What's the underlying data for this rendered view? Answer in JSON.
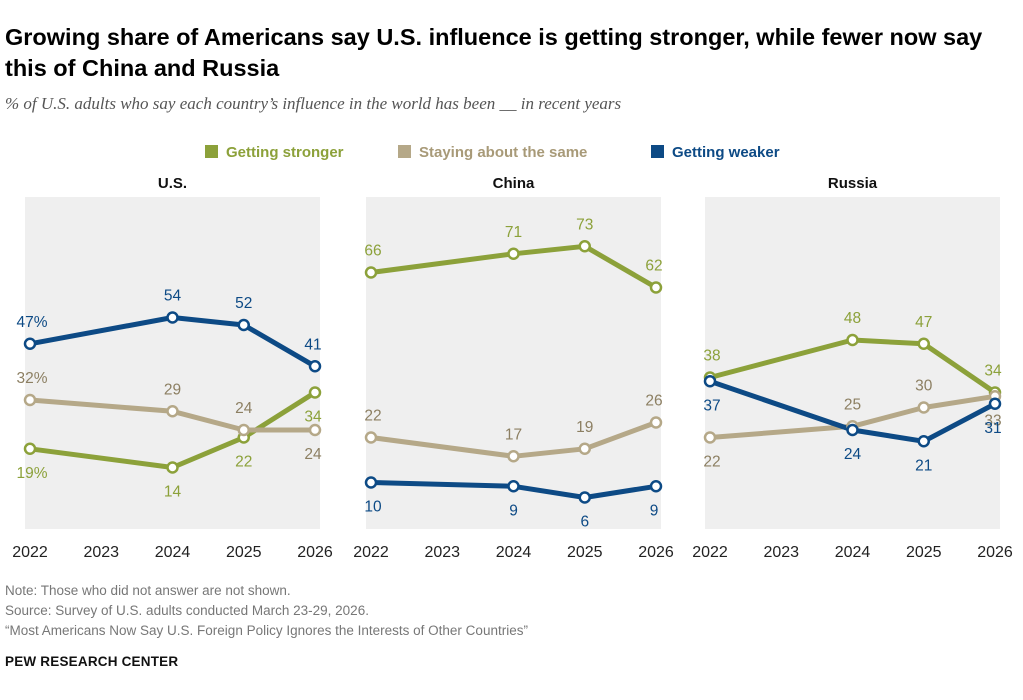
{
  "title": "Growing share of Americans say U.S. influence is getting stronger, while fewer now say this of China and Russia",
  "subtitle": "% of U.S. adults who say each country’s influence in the world has been __ in recent years",
  "notes": [
    "Note: Those who did not answer are not shown.",
    "Source: Survey of U.S. adults conducted March 23-29, 2026.",
    "“Most Americans Now Say U.S. Foreign Policy Ignores the Interests of Other Countries”"
  ],
  "organization": "PEW RESEARCH CENTER",
  "colors": {
    "stronger": "#8ca13a",
    "same": "#b5a888",
    "weaker": "#0d4a85",
    "panel_bg": "#efefef"
  },
  "chart_data": {
    "type": "line",
    "legend": {
      "placement": "top"
    },
    "series_labels": {
      "stronger": "Getting stronger",
      "same": "Staying about the same",
      "weaker": "Getting weaker"
    },
    "x": [
      "2022",
      "2023",
      "2024",
      "2025",
      "2026"
    ],
    "xlim": [
      2022,
      2026
    ],
    "ylim": [
      0,
      80
    ],
    "panels": [
      {
        "title": "U.S.",
        "data_years": [
          2022,
          2024,
          2025,
          2026
        ],
        "series": [
          {
            "key": "stronger",
            "values": [
              19,
              14,
              22,
              34
            ],
            "labels": [
              "19%",
              "14",
              "22",
              "34"
            ]
          },
          {
            "key": "same",
            "values": [
              32,
              29,
              24,
              24
            ],
            "labels": [
              "32%",
              "29",
              "24",
              "24"
            ]
          },
          {
            "key": "weaker",
            "values": [
              47,
              54,
              52,
              41
            ],
            "labels": [
              "47%",
              "54",
              "52",
              "41"
            ]
          }
        ]
      },
      {
        "title": "China",
        "data_years": [
          2022,
          2024,
          2025,
          2026
        ],
        "series": [
          {
            "key": "stronger",
            "values": [
              66,
              71,
              73,
              62
            ],
            "labels": [
              "66",
              "71",
              "73",
              "62"
            ]
          },
          {
            "key": "same",
            "values": [
              22,
              17,
              19,
              26
            ],
            "labels": [
              "22",
              "17",
              "19",
              "26"
            ]
          },
          {
            "key": "weaker",
            "values": [
              10,
              9,
              6,
              9
            ],
            "labels": [
              "10",
              "9",
              "6",
              "9"
            ]
          }
        ]
      },
      {
        "title": "Russia",
        "data_years": [
          2022,
          2024,
          2025,
          2026
        ],
        "series": [
          {
            "key": "stronger",
            "values": [
              38,
              48,
              47,
              34
            ],
            "labels": [
              "38",
              "48",
              "47",
              "34"
            ]
          },
          {
            "key": "same",
            "values": [
              22,
              25,
              30,
              33
            ],
            "labels": [
              "22",
              "25",
              "30",
              "33"
            ]
          },
          {
            "key": "weaker",
            "values": [
              37,
              24,
              21,
              31
            ],
            "labels": [
              "37",
              "24",
              "21",
              "31"
            ]
          }
        ]
      }
    ]
  }
}
